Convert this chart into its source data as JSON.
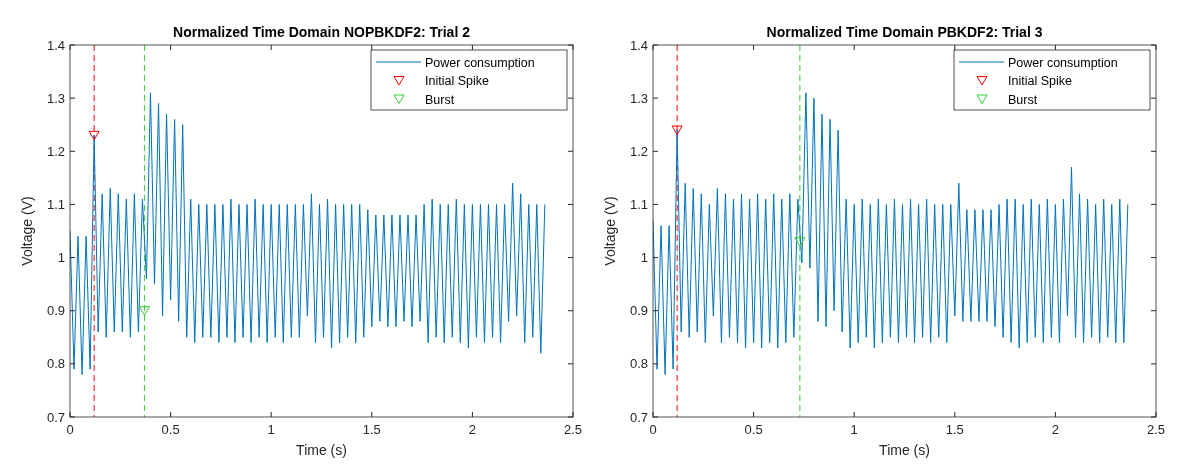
{
  "chart_data": [
    {
      "type": "line",
      "title": "Normalized Time Domain NOPBKDF2: Trial 2",
      "xlabel": "Time (s)",
      "ylabel": "Voltage (V)",
      "xlim": [
        0,
        2.5
      ],
      "ylim": [
        0.7,
        1.4
      ],
      "xticks": [
        0,
        0.5,
        1,
        1.5,
        2,
        2.5
      ],
      "yticks": [
        0.7,
        0.8,
        0.9,
        1,
        1.1,
        1.2,
        1.3,
        1.4
      ],
      "legend": "top right",
      "x": [
        0,
        0.02,
        0.04,
        0.06,
        0.08,
        0.1,
        0.12,
        0.14,
        0.16,
        0.18,
        0.2,
        0.22,
        0.24,
        0.26,
        0.28,
        0.3,
        0.32,
        0.34,
        0.36,
        0.38,
        0.4,
        0.42,
        0.44,
        0.46,
        0.48,
        0.5,
        0.52,
        0.54,
        0.56,
        0.58,
        0.6,
        0.62,
        0.64,
        0.66,
        0.68,
        0.7,
        0.72,
        0.74,
        0.76,
        0.78,
        0.8,
        0.82,
        0.84,
        0.86,
        0.88,
        0.9,
        0.92,
        0.94,
        0.96,
        0.98,
        1,
        1.02,
        1.04,
        1.06,
        1.08,
        1.1,
        1.12,
        1.14,
        1.16,
        1.18,
        1.2,
        1.22,
        1.24,
        1.26,
        1.28,
        1.3,
        1.32,
        1.34,
        1.36,
        1.38,
        1.4,
        1.42,
        1.44,
        1.46,
        1.48,
        1.5,
        1.52,
        1.54,
        1.56,
        1.58,
        1.6,
        1.62,
        1.64,
        1.66,
        1.68,
        1.7,
        1.72,
        1.74,
        1.76,
        1.78,
        1.8,
        1.82,
        1.84,
        1.86,
        1.88,
        1.9,
        1.92,
        1.94,
        1.96,
        1.98,
        2,
        2.02,
        2.04,
        2.06,
        2.08,
        2.1,
        2.12,
        2.14,
        2.16,
        2.18,
        2.2,
        2.22,
        2.24,
        2.26,
        2.28,
        2.3,
        2.32,
        2.34,
        2.36
      ],
      "series": [
        {
          "name": "Power consumption",
          "color": "#0072bd",
          "marker": "none",
          "line_style": "solid",
          "values": [
            1.05,
            0.79,
            1.04,
            0.78,
            1.04,
            0.79,
            1.23,
            0.86,
            1.12,
            0.85,
            1.13,
            0.86,
            1.12,
            0.86,
            1.11,
            0.85,
            1.12,
            0.86,
            1.11,
            0.96,
            1.31,
            0.95,
            1.29,
            0.89,
            1.27,
            0.92,
            1.26,
            0.88,
            1.25,
            0.85,
            1.11,
            0.84,
            1.1,
            0.85,
            1.1,
            0.85,
            1.1,
            0.84,
            1.1,
            0.85,
            1.11,
            0.84,
            1.1,
            0.85,
            1.1,
            0.84,
            1.11,
            0.85,
            1.1,
            0.84,
            1.1,
            0.85,
            1.1,
            0.84,
            1.1,
            0.85,
            1.1,
            0.85,
            1.1,
            0.89,
            1.12,
            0.84,
            1.1,
            0.85,
            1.11,
            0.83,
            1.1,
            0.84,
            1.1,
            0.85,
            1.1,
            0.84,
            1.1,
            0.85,
            1.09,
            0.87,
            1.08,
            0.88,
            1.08,
            0.87,
            1.08,
            0.87,
            1.08,
            0.88,
            1.08,
            0.87,
            1.08,
            0.88,
            1.1,
            0.84,
            1.11,
            0.85,
            1.1,
            0.84,
            1.1,
            0.85,
            1.11,
            0.84,
            1.1,
            0.83,
            1.1,
            0.85,
            1.1,
            0.84,
            1.1,
            0.85,
            1.1,
            0.84,
            1.1,
            0.88,
            1.14,
            0.89,
            1.12,
            0.84,
            1.1,
            0.85,
            1.1,
            0.82,
            1.1
          ]
        },
        {
          "name": "Initial Spike",
          "type": "scatter",
          "color": "#ff0000",
          "marker": "triangle",
          "x": [
            0.12
          ],
          "values": [
            1.23
          ]
        },
        {
          "name": "Burst",
          "type": "scatter",
          "color": "#33cc33",
          "marker": "triangle",
          "x": [
            0.37
          ],
          "values": [
            0.9
          ]
        }
      ],
      "ref_lines": [
        {
          "axis": "x",
          "value": 0.12,
          "color": "#ff0000",
          "line_style": "dashed"
        },
        {
          "axis": "x",
          "value": 0.37,
          "color": "#33cc33",
          "line_style": "dashed"
        }
      ]
    },
    {
      "type": "line",
      "title": "Normalized Time Domain PBKDF2: Trial 3",
      "xlabel": "Time (s)",
      "ylabel": "Voltage (V)",
      "xlim": [
        0,
        2.5
      ],
      "ylim": [
        0.7,
        1.4
      ],
      "xticks": [
        0,
        0.5,
        1,
        1.5,
        2,
        2.5
      ],
      "yticks": [
        0.7,
        0.8,
        0.9,
        1,
        1.1,
        1.2,
        1.3,
        1.4
      ],
      "legend": "top right",
      "x": [
        0,
        0.02,
        0.04,
        0.06,
        0.08,
        0.1,
        0.12,
        0.14,
        0.16,
        0.18,
        0.2,
        0.22,
        0.24,
        0.26,
        0.28,
        0.3,
        0.32,
        0.34,
        0.36,
        0.38,
        0.4,
        0.42,
        0.44,
        0.46,
        0.48,
        0.5,
        0.52,
        0.54,
        0.56,
        0.58,
        0.6,
        0.62,
        0.64,
        0.66,
        0.68,
        0.7,
        0.72,
        0.74,
        0.76,
        0.78,
        0.8,
        0.82,
        0.84,
        0.86,
        0.88,
        0.9,
        0.92,
        0.94,
        0.96,
        0.98,
        1,
        1.02,
        1.04,
        1.06,
        1.08,
        1.1,
        1.12,
        1.14,
        1.16,
        1.18,
        1.2,
        1.22,
        1.24,
        1.26,
        1.28,
        1.3,
        1.32,
        1.34,
        1.36,
        1.38,
        1.4,
        1.42,
        1.44,
        1.46,
        1.48,
        1.5,
        1.52,
        1.54,
        1.56,
        1.58,
        1.6,
        1.62,
        1.64,
        1.66,
        1.68,
        1.7,
        1.72,
        1.74,
        1.76,
        1.78,
        1.8,
        1.82,
        1.84,
        1.86,
        1.88,
        1.9,
        1.92,
        1.94,
        1.96,
        1.98,
        2,
        2.02,
        2.04,
        2.06,
        2.08,
        2.1,
        2.12,
        2.14,
        2.16,
        2.18,
        2.2,
        2.22,
        2.24,
        2.26,
        2.28,
        2.3,
        2.32,
        2.34,
        2.36
      ],
      "series": [
        {
          "name": "Power consumption",
          "color": "#0072bd",
          "marker": "none",
          "line_style": "solid",
          "values": [
            1.07,
            0.79,
            1.06,
            0.78,
            1.06,
            0.79,
            1.24,
            0.86,
            1.14,
            0.85,
            1.13,
            0.86,
            1.12,
            0.84,
            1.1,
            0.89,
            1.13,
            0.84,
            1.12,
            0.85,
            1.11,
            0.84,
            1.12,
            0.83,
            1.11,
            0.84,
            1.12,
            0.83,
            1.11,
            0.84,
            1.12,
            0.83,
            1.11,
            0.84,
            1.12,
            0.85,
            1.11,
            0.99,
            1.31,
            0.98,
            1.3,
            0.88,
            1.27,
            0.87,
            1.26,
            0.9,
            1.24,
            0.86,
            1.11,
            0.83,
            1.1,
            0.84,
            1.11,
            0.85,
            1.1,
            0.83,
            1.11,
            0.84,
            1.1,
            0.85,
            1.11,
            0.84,
            1.1,
            0.85,
            1.11,
            0.84,
            1.1,
            0.85,
            1.11,
            0.84,
            1.1,
            0.85,
            1.1,
            0.84,
            1.1,
            0.89,
            1.14,
            0.88,
            1.09,
            0.88,
            1.09,
            0.88,
            1.09,
            0.88,
            1.09,
            0.87,
            1.1,
            0.85,
            1.11,
            0.84,
            1.11,
            0.83,
            1.1,
            0.84,
            1.11,
            0.85,
            1.1,
            0.84,
            1.11,
            0.85,
            1.1,
            0.84,
            1.11,
            0.89,
            1.17,
            0.85,
            1.12,
            0.84,
            1.11,
            0.85,
            1.1,
            0.84,
            1.11,
            0.85,
            1.1,
            0.84,
            1.11,
            0.84,
            1.1
          ]
        },
        {
          "name": "Initial Spike",
          "type": "scatter",
          "color": "#ff0000",
          "marker": "triangle",
          "x": [
            0.12
          ],
          "values": [
            1.24
          ]
        },
        {
          "name": "Burst",
          "type": "scatter",
          "color": "#33cc33",
          "marker": "triangle",
          "x": [
            0.73
          ],
          "values": [
            1.03
          ]
        }
      ],
      "ref_lines": [
        {
          "axis": "x",
          "value": 0.12,
          "color": "#ff0000",
          "line_style": "dashed"
        },
        {
          "axis": "x",
          "value": 0.73,
          "color": "#33cc33",
          "line_style": "dashed"
        }
      ]
    }
  ]
}
